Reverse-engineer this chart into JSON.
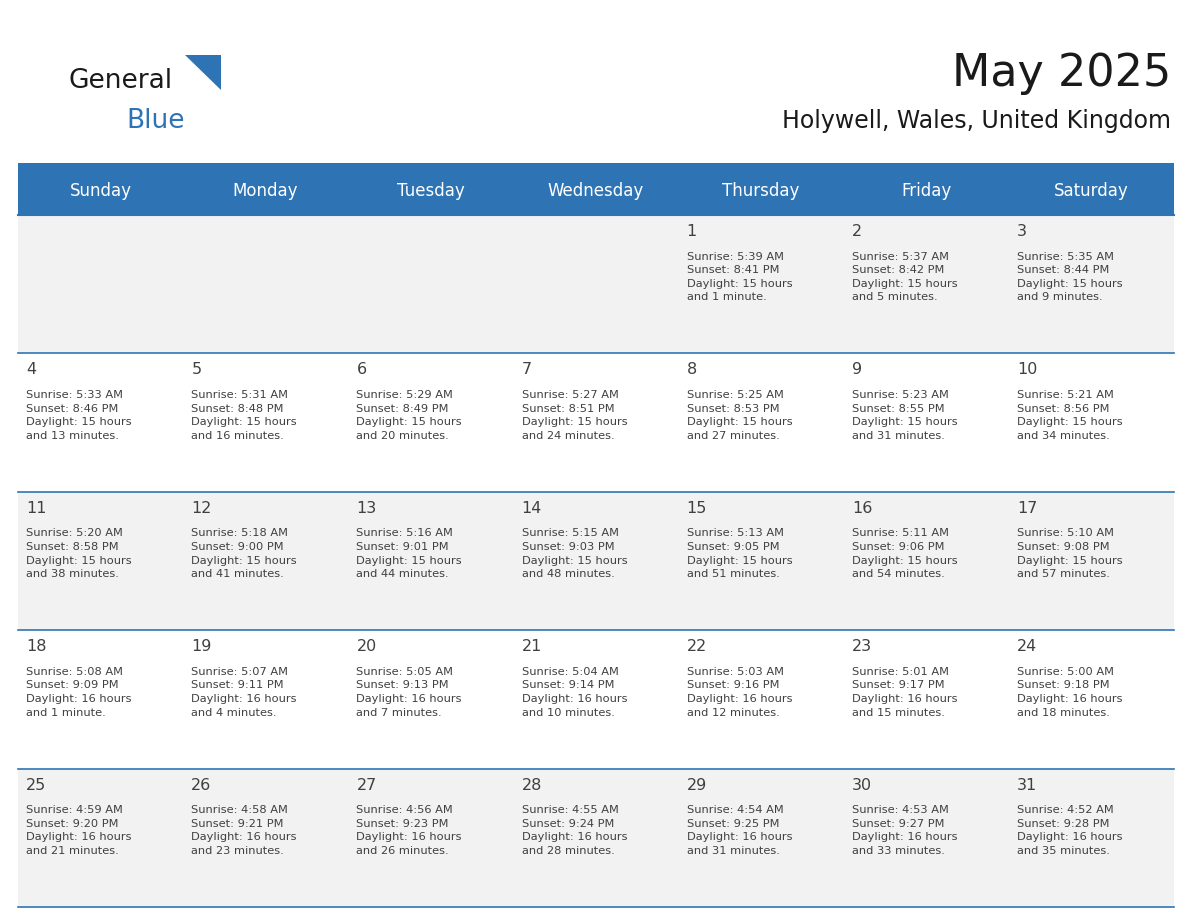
{
  "title": "May 2025",
  "subtitle": "Holywell, Wales, United Kingdom",
  "header_bg": "#2E74B5",
  "header_text_color": "#FFFFFF",
  "day_names": [
    "Sunday",
    "Monday",
    "Tuesday",
    "Wednesday",
    "Thursday",
    "Friday",
    "Saturday"
  ],
  "cell_bg_even": "#F2F2F2",
  "cell_bg_odd": "#FFFFFF",
  "grid_color": "#2E74B5",
  "text_color": "#404040",
  "title_color": "#1a1a1a",
  "subtitle_color": "#1a1a1a",
  "logo_color1": "#1a1a1a",
  "logo_color2": "#2E74B5",
  "calendar_data": [
    {
      "day": 1,
      "col": 4,
      "row": 0,
      "sunrise": "5:39 AM",
      "sunset": "8:41 PM",
      "daylight": "15 hours",
      "daylight2": "and 1 minute."
    },
    {
      "day": 2,
      "col": 5,
      "row": 0,
      "sunrise": "5:37 AM",
      "sunset": "8:42 PM",
      "daylight": "15 hours",
      "daylight2": "and 5 minutes."
    },
    {
      "day": 3,
      "col": 6,
      "row": 0,
      "sunrise": "5:35 AM",
      "sunset": "8:44 PM",
      "daylight": "15 hours",
      "daylight2": "and 9 minutes."
    },
    {
      "day": 4,
      "col": 0,
      "row": 1,
      "sunrise": "5:33 AM",
      "sunset": "8:46 PM",
      "daylight": "15 hours",
      "daylight2": "and 13 minutes."
    },
    {
      "day": 5,
      "col": 1,
      "row": 1,
      "sunrise": "5:31 AM",
      "sunset": "8:48 PM",
      "daylight": "15 hours",
      "daylight2": "and 16 minutes."
    },
    {
      "day": 6,
      "col": 2,
      "row": 1,
      "sunrise": "5:29 AM",
      "sunset": "8:49 PM",
      "daylight": "15 hours",
      "daylight2": "and 20 minutes."
    },
    {
      "day": 7,
      "col": 3,
      "row": 1,
      "sunrise": "5:27 AM",
      "sunset": "8:51 PM",
      "daylight": "15 hours",
      "daylight2": "and 24 minutes."
    },
    {
      "day": 8,
      "col": 4,
      "row": 1,
      "sunrise": "5:25 AM",
      "sunset": "8:53 PM",
      "daylight": "15 hours",
      "daylight2": "and 27 minutes."
    },
    {
      "day": 9,
      "col": 5,
      "row": 1,
      "sunrise": "5:23 AM",
      "sunset": "8:55 PM",
      "daylight": "15 hours",
      "daylight2": "and 31 minutes."
    },
    {
      "day": 10,
      "col": 6,
      "row": 1,
      "sunrise": "5:21 AM",
      "sunset": "8:56 PM",
      "daylight": "15 hours",
      "daylight2": "and 34 minutes."
    },
    {
      "day": 11,
      "col": 0,
      "row": 2,
      "sunrise": "5:20 AM",
      "sunset": "8:58 PM",
      "daylight": "15 hours",
      "daylight2": "and 38 minutes."
    },
    {
      "day": 12,
      "col": 1,
      "row": 2,
      "sunrise": "5:18 AM",
      "sunset": "9:00 PM",
      "daylight": "15 hours",
      "daylight2": "and 41 minutes."
    },
    {
      "day": 13,
      "col": 2,
      "row": 2,
      "sunrise": "5:16 AM",
      "sunset": "9:01 PM",
      "daylight": "15 hours",
      "daylight2": "and 44 minutes."
    },
    {
      "day": 14,
      "col": 3,
      "row": 2,
      "sunrise": "5:15 AM",
      "sunset": "9:03 PM",
      "daylight": "15 hours",
      "daylight2": "and 48 minutes."
    },
    {
      "day": 15,
      "col": 4,
      "row": 2,
      "sunrise": "5:13 AM",
      "sunset": "9:05 PM",
      "daylight": "15 hours",
      "daylight2": "and 51 minutes."
    },
    {
      "day": 16,
      "col": 5,
      "row": 2,
      "sunrise": "5:11 AM",
      "sunset": "9:06 PM",
      "daylight": "15 hours",
      "daylight2": "and 54 minutes."
    },
    {
      "day": 17,
      "col": 6,
      "row": 2,
      "sunrise": "5:10 AM",
      "sunset": "9:08 PM",
      "daylight": "15 hours",
      "daylight2": "and 57 minutes."
    },
    {
      "day": 18,
      "col": 0,
      "row": 3,
      "sunrise": "5:08 AM",
      "sunset": "9:09 PM",
      "daylight": "16 hours",
      "daylight2": "and 1 minute."
    },
    {
      "day": 19,
      "col": 1,
      "row": 3,
      "sunrise": "5:07 AM",
      "sunset": "9:11 PM",
      "daylight": "16 hours",
      "daylight2": "and 4 minutes."
    },
    {
      "day": 20,
      "col": 2,
      "row": 3,
      "sunrise": "5:05 AM",
      "sunset": "9:13 PM",
      "daylight": "16 hours",
      "daylight2": "and 7 minutes."
    },
    {
      "day": 21,
      "col": 3,
      "row": 3,
      "sunrise": "5:04 AM",
      "sunset": "9:14 PM",
      "daylight": "16 hours",
      "daylight2": "and 10 minutes."
    },
    {
      "day": 22,
      "col": 4,
      "row": 3,
      "sunrise": "5:03 AM",
      "sunset": "9:16 PM",
      "daylight": "16 hours",
      "daylight2": "and 12 minutes."
    },
    {
      "day": 23,
      "col": 5,
      "row": 3,
      "sunrise": "5:01 AM",
      "sunset": "9:17 PM",
      "daylight": "16 hours",
      "daylight2": "and 15 minutes."
    },
    {
      "day": 24,
      "col": 6,
      "row": 3,
      "sunrise": "5:00 AM",
      "sunset": "9:18 PM",
      "daylight": "16 hours",
      "daylight2": "and 18 minutes."
    },
    {
      "day": 25,
      "col": 0,
      "row": 4,
      "sunrise": "4:59 AM",
      "sunset": "9:20 PM",
      "daylight": "16 hours",
      "daylight2": "and 21 minutes."
    },
    {
      "day": 26,
      "col": 1,
      "row": 4,
      "sunrise": "4:58 AM",
      "sunset": "9:21 PM",
      "daylight": "16 hours",
      "daylight2": "and 23 minutes."
    },
    {
      "day": 27,
      "col": 2,
      "row": 4,
      "sunrise": "4:56 AM",
      "sunset": "9:23 PM",
      "daylight": "16 hours",
      "daylight2": "and 26 minutes."
    },
    {
      "day": 28,
      "col": 3,
      "row": 4,
      "sunrise": "4:55 AM",
      "sunset": "9:24 PM",
      "daylight": "16 hours",
      "daylight2": "and 28 minutes."
    },
    {
      "day": 29,
      "col": 4,
      "row": 4,
      "sunrise": "4:54 AM",
      "sunset": "9:25 PM",
      "daylight": "16 hours",
      "daylight2": "and 31 minutes."
    },
    {
      "day": 30,
      "col": 5,
      "row": 4,
      "sunrise": "4:53 AM",
      "sunset": "9:27 PM",
      "daylight": "16 hours",
      "daylight2": "and 33 minutes."
    },
    {
      "day": 31,
      "col": 6,
      "row": 4,
      "sunrise": "4:52 AM",
      "sunset": "9:28 PM",
      "daylight": "16 hours",
      "daylight2": "and 35 minutes."
    }
  ],
  "num_rows": 5,
  "num_cols": 7,
  "figsize": [
    11.88,
    9.18
  ],
  "dpi": 100
}
